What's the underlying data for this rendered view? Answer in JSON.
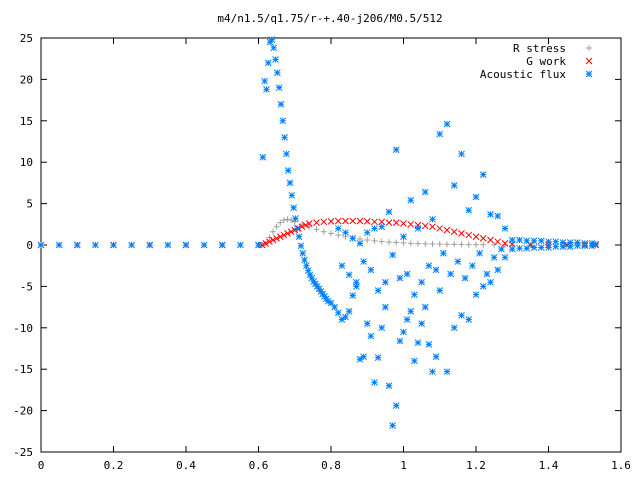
{
  "chart_data": {
    "type": "scatter",
    "title": "m4/n1.5/q1.75/r-+.40-j206/M0.5/512",
    "xlabel": "",
    "ylabel": "",
    "xlim": [
      0,
      1.6
    ],
    "ylim": [
      -25,
      25
    ],
    "xticks": [
      "0",
      "0.2",
      "0.4",
      "0.6",
      "0.8",
      "1",
      "1.2",
      "1.4",
      "1.6"
    ],
    "yticks": [
      "25",
      "20",
      "15",
      "10",
      "5",
      "0",
      "-5",
      "-10",
      "-15",
      "-20",
      "-25"
    ],
    "legend_position": "top-right",
    "grid": false,
    "series": [
      {
        "name": "R stress",
        "marker": "plus",
        "color": "#a0a0a0",
        "points": [
          [
            0.0,
            0.0
          ],
          [
            0.1,
            0.0
          ],
          [
            0.2,
            0.0
          ],
          [
            0.3,
            0.0
          ],
          [
            0.4,
            0.0
          ],
          [
            0.5,
            0.0
          ],
          [
            0.6,
            0.0
          ],
          [
            0.61,
            0.0
          ],
          [
            0.62,
            0.2
          ],
          [
            0.63,
            0.9
          ],
          [
            0.64,
            1.6
          ],
          [
            0.65,
            2.2
          ],
          [
            0.66,
            2.7
          ],
          [
            0.67,
            3.0
          ],
          [
            0.68,
            3.1
          ],
          [
            0.69,
            3.0
          ],
          [
            0.7,
            2.8
          ],
          [
            0.72,
            2.5
          ],
          [
            0.74,
            2.2
          ],
          [
            0.76,
            1.9
          ],
          [
            0.78,
            1.6
          ],
          [
            0.8,
            1.4
          ],
          [
            0.82,
            1.2
          ],
          [
            0.84,
            1.0
          ],
          [
            0.86,
            0.85
          ],
          [
            0.88,
            0.72
          ],
          [
            0.9,
            0.6
          ],
          [
            0.92,
            0.5
          ],
          [
            0.94,
            0.42
          ],
          [
            0.96,
            0.35
          ],
          [
            0.98,
            0.3
          ],
          [
            1.0,
            0.25
          ],
          [
            1.02,
            0.2
          ],
          [
            1.04,
            0.17
          ],
          [
            1.06,
            0.14
          ],
          [
            1.08,
            0.12
          ],
          [
            1.1,
            0.1
          ],
          [
            1.12,
            0.09
          ],
          [
            1.14,
            0.08
          ],
          [
            1.16,
            0.06
          ],
          [
            1.18,
            0.05
          ],
          [
            1.2,
            0.04
          ],
          [
            1.22,
            0.03
          ],
          [
            1.25,
            0.02
          ],
          [
            1.28,
            0.0
          ],
          [
            1.3,
            0.0
          ],
          [
            1.35,
            0.0
          ],
          [
            1.4,
            0.0
          ],
          [
            1.45,
            0.0
          ],
          [
            1.5,
            0.0
          ],
          [
            1.53,
            0.0
          ]
        ]
      },
      {
        "name": "G work",
        "marker": "cross",
        "color": "#ff0000",
        "points": [
          [
            0.0,
            0.0
          ],
          [
            0.1,
            0.0
          ],
          [
            0.2,
            0.0
          ],
          [
            0.3,
            0.0
          ],
          [
            0.4,
            0.0
          ],
          [
            0.5,
            0.0
          ],
          [
            0.6,
            0.0
          ],
          [
            0.61,
            0.0
          ],
          [
            0.62,
            0.2
          ],
          [
            0.63,
            0.4
          ],
          [
            0.64,
            0.6
          ],
          [
            0.65,
            0.8
          ],
          [
            0.66,
            1.0
          ],
          [
            0.67,
            1.2
          ],
          [
            0.68,
            1.4
          ],
          [
            0.69,
            1.6
          ],
          [
            0.7,
            1.8
          ],
          [
            0.71,
            2.0
          ],
          [
            0.72,
            2.2
          ],
          [
            0.73,
            2.4
          ],
          [
            0.74,
            2.6
          ],
          [
            0.76,
            2.7
          ],
          [
            0.78,
            2.8
          ],
          [
            0.8,
            2.85
          ],
          [
            0.82,
            2.9
          ],
          [
            0.84,
            2.9
          ],
          [
            0.86,
            2.9
          ],
          [
            0.88,
            2.9
          ],
          [
            0.9,
            2.85
          ],
          [
            0.92,
            2.8
          ],
          [
            0.94,
            2.8
          ],
          [
            0.96,
            2.7
          ],
          [
            0.98,
            2.7
          ],
          [
            1.0,
            2.6
          ],
          [
            1.02,
            2.5
          ],
          [
            1.04,
            2.4
          ],
          [
            1.06,
            2.3
          ],
          [
            1.08,
            2.2
          ],
          [
            1.1,
            2.0
          ],
          [
            1.12,
            1.8
          ],
          [
            1.14,
            1.6
          ],
          [
            1.16,
            1.4
          ],
          [
            1.18,
            1.2
          ],
          [
            1.2,
            1.0
          ],
          [
            1.22,
            0.8
          ],
          [
            1.24,
            0.6
          ],
          [
            1.26,
            0.4
          ],
          [
            1.28,
            0.2
          ],
          [
            1.3,
            0.1
          ],
          [
            1.35,
            0.0
          ],
          [
            1.4,
            0.0
          ],
          [
            1.45,
            0.0
          ],
          [
            1.5,
            0.0
          ],
          [
            1.53,
            0.0
          ]
        ]
      },
      {
        "name": "Acoustic flux",
        "marker": "star",
        "color": "#0080ff",
        "points": [
          [
            0.0,
            0.0
          ],
          [
            0.05,
            0.0
          ],
          [
            0.1,
            0.0
          ],
          [
            0.15,
            0.0
          ],
          [
            0.2,
            0.0
          ],
          [
            0.25,
            0.0
          ],
          [
            0.3,
            0.0
          ],
          [
            0.35,
            0.0
          ],
          [
            0.4,
            0.0
          ],
          [
            0.45,
            0.0
          ],
          [
            0.5,
            0.0
          ],
          [
            0.55,
            0.0
          ],
          [
            0.6,
            0.0
          ],
          [
            0.612,
            10.6
          ],
          [
            0.617,
            19.8
          ],
          [
            0.622,
            18.8
          ],
          [
            0.627,
            22.0
          ],
          [
            0.632,
            24.5
          ],
          [
            0.637,
            24.8
          ],
          [
            0.642,
            23.8
          ],
          [
            0.647,
            22.4
          ],
          [
            0.652,
            20.8
          ],
          [
            0.657,
            19.0
          ],
          [
            0.662,
            17.0
          ],
          [
            0.667,
            15.0
          ],
          [
            0.672,
            13.0
          ],
          [
            0.677,
            11.0
          ],
          [
            0.682,
            9.0
          ],
          [
            0.687,
            7.5
          ],
          [
            0.692,
            6.0
          ],
          [
            0.697,
            4.5
          ],
          [
            0.702,
            3.2
          ],
          [
            0.707,
            2.0
          ],
          [
            0.712,
            1.0
          ],
          [
            0.717,
            -0.1
          ],
          [
            0.722,
            -1.0
          ],
          [
            0.727,
            -1.8
          ],
          [
            0.732,
            -2.5
          ],
          [
            0.737,
            -3.1
          ],
          [
            0.742,
            -3.6
          ],
          [
            0.747,
            -4.0
          ],
          [
            0.752,
            -4.4
          ],
          [
            0.757,
            -4.7
          ],
          [
            0.762,
            -5.0
          ],
          [
            0.767,
            -5.3
          ],
          [
            0.772,
            -5.6
          ],
          [
            0.777,
            -5.9
          ],
          [
            0.782,
            -6.2
          ],
          [
            0.787,
            -6.5
          ],
          [
            0.792,
            -6.8
          ],
          [
            0.8,
            -7.0
          ],
          [
            0.81,
            -7.5
          ],
          [
            0.82,
            -8.2
          ],
          [
            0.83,
            -9.0
          ],
          [
            0.84,
            -8.7
          ],
          [
            0.85,
            -8.0
          ],
          [
            0.86,
            -6.1
          ],
          [
            0.87,
            -5.0
          ],
          [
            0.88,
            -13.8
          ],
          [
            0.89,
            -13.5
          ],
          [
            0.9,
            -9.5
          ],
          [
            0.91,
            -11.0
          ],
          [
            0.92,
            -16.6
          ],
          [
            0.93,
            -13.6
          ],
          [
            0.94,
            -10.0
          ],
          [
            0.95,
            -7.5
          ],
          [
            0.96,
            -17.0
          ],
          [
            0.97,
            -21.8
          ],
          [
            0.98,
            -19.4
          ],
          [
            0.99,
            -11.6
          ],
          [
            1.0,
            -10.5
          ],
          [
            1.01,
            -9.0
          ],
          [
            1.02,
            -8.0
          ],
          [
            1.03,
            -14.0
          ],
          [
            1.04,
            -11.8
          ],
          [
            1.05,
            -9.5
          ],
          [
            1.06,
            -7.5
          ],
          [
            1.07,
            -12.0
          ],
          [
            1.08,
            -15.3
          ],
          [
            1.09,
            -13.5
          ],
          [
            1.1,
            -5.5
          ],
          [
            1.12,
            -15.3
          ],
          [
            1.14,
            -10.0
          ],
          [
            1.16,
            -8.5
          ],
          [
            1.18,
            -9.0
          ],
          [
            1.2,
            -6.0
          ],
          [
            1.22,
            -5.0
          ],
          [
            1.24,
            -4.5
          ],
          [
            1.26,
            -3.0
          ],
          [
            1.28,
            -1.5
          ],
          [
            0.82,
            2.0
          ],
          [
            0.84,
            1.5
          ],
          [
            0.86,
            0.8
          ],
          [
            0.88,
            0.2
          ],
          [
            0.9,
            1.5
          ],
          [
            0.92,
            2.0
          ],
          [
            0.94,
            2.2
          ],
          [
            0.96,
            4.0
          ],
          [
            0.98,
            11.5
          ],
          [
            1.0,
            1.0
          ],
          [
            1.02,
            5.4
          ],
          [
            1.04,
            2.0
          ],
          [
            1.06,
            6.4
          ],
          [
            1.08,
            3.1
          ],
          [
            1.1,
            13.4
          ],
          [
            1.12,
            14.6
          ],
          [
            1.14,
            7.2
          ],
          [
            1.16,
            11.0
          ],
          [
            1.18,
            4.2
          ],
          [
            1.2,
            5.8
          ],
          [
            1.22,
            8.5
          ],
          [
            1.24,
            3.7
          ],
          [
            1.26,
            3.5
          ],
          [
            1.28,
            2.0
          ],
          [
            0.83,
            -2.5
          ],
          [
            0.85,
            -3.6
          ],
          [
            0.87,
            -4.5
          ],
          [
            0.89,
            -2.0
          ],
          [
            0.91,
            -3.0
          ],
          [
            0.93,
            -5.5
          ],
          [
            0.95,
            -4.5
          ],
          [
            0.97,
            -1.2
          ],
          [
            0.99,
            -4.0
          ],
          [
            1.01,
            -3.5
          ],
          [
            1.03,
            -6.0
          ],
          [
            1.05,
            -4.5
          ],
          [
            1.07,
            -2.5
          ],
          [
            1.09,
            -3.0
          ],
          [
            1.11,
            -1.0
          ],
          [
            1.13,
            -3.5
          ],
          [
            1.15,
            -2.0
          ],
          [
            1.17,
            -4.0
          ],
          [
            1.19,
            -2.5
          ],
          [
            1.21,
            -1.0
          ],
          [
            1.23,
            -3.5
          ],
          [
            1.25,
            -1.5
          ],
          [
            1.27,
            -0.5
          ],
          [
            1.3,
            0.6
          ],
          [
            1.32,
            0.6
          ],
          [
            1.34,
            0.5
          ],
          [
            1.36,
            0.5
          ],
          [
            1.38,
            0.5
          ],
          [
            1.4,
            0.4
          ],
          [
            1.42,
            0.4
          ],
          [
            1.44,
            0.3
          ],
          [
            1.46,
            0.3
          ],
          [
            1.48,
            0.3
          ],
          [
            1.5,
            0.2
          ],
          [
            1.52,
            0.2
          ],
          [
            1.53,
            0.1
          ],
          [
            1.3,
            -0.5
          ],
          [
            1.32,
            -0.4
          ],
          [
            1.34,
            -0.4
          ],
          [
            1.36,
            -0.3
          ],
          [
            1.38,
            -0.3
          ],
          [
            1.4,
            -0.3
          ],
          [
            1.42,
            -0.2
          ],
          [
            1.44,
            -0.2
          ],
          [
            1.46,
            -0.2
          ],
          [
            1.48,
            -0.1
          ],
          [
            1.5,
            -0.1
          ],
          [
            1.52,
            -0.1
          ]
        ]
      }
    ]
  }
}
